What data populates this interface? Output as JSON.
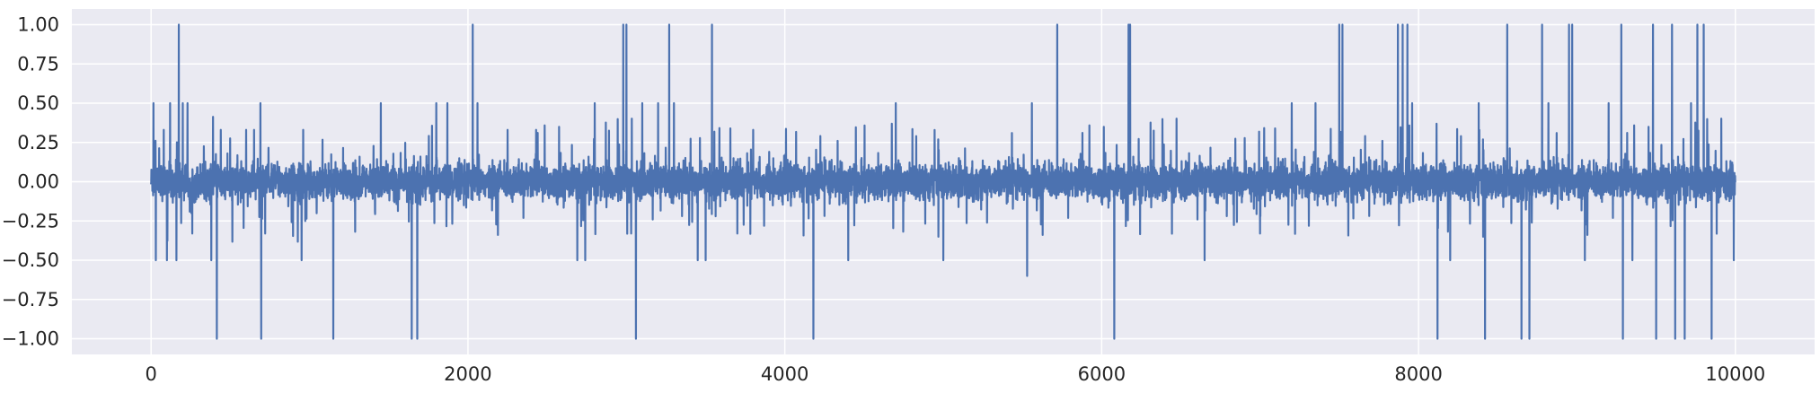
{
  "chart_data": {
    "type": "line",
    "title": "",
    "xlabel": "",
    "ylabel": "",
    "xlim": [
      -500,
      10500
    ],
    "ylim": [
      -1.1,
      1.1
    ],
    "x_ticks": [
      0,
      2000,
      4000,
      6000,
      8000,
      10000
    ],
    "x_tick_labels": [
      "0",
      "2000",
      "4000",
      "6000",
      "8000",
      "10000"
    ],
    "y_ticks": [
      1.0,
      0.75,
      0.5,
      0.25,
      0.0,
      -0.25,
      -0.5,
      -0.75,
      -1.0
    ],
    "y_tick_labels": [
      "1.00",
      "0.75",
      "0.50",
      "0.25",
      "0.00",
      "−0.25",
      "−0.50",
      "−0.75",
      "−1.00"
    ],
    "grid": true,
    "legend": "none",
    "series": [
      {
        "color": "#4C72B0",
        "x_range": [
          0,
          10000
        ],
        "n_points": 10000,
        "typical_amplitude": 0.1,
        "spikes": [
          {
            "x": 15,
            "y": 0.5
          },
          {
            "x": 30,
            "y": -0.5
          },
          {
            "x": 80,
            "y": 0.33
          },
          {
            "x": 100,
            "y": -0.5
          },
          {
            "x": 120,
            "y": 0.5
          },
          {
            "x": 160,
            "y": -0.5
          },
          {
            "x": 175,
            "y": 1.0
          },
          {
            "x": 200,
            "y": 0.5
          },
          {
            "x": 230,
            "y": 0.5
          },
          {
            "x": 260,
            "y": -0.33
          },
          {
            "x": 380,
            "y": -0.5
          },
          {
            "x": 415,
            "y": -1.0
          },
          {
            "x": 440,
            "y": 0.33
          },
          {
            "x": 600,
            "y": 0.33
          },
          {
            "x": 650,
            "y": 0.33
          },
          {
            "x": 690,
            "y": 0.5
          },
          {
            "x": 695,
            "y": -1.0
          },
          {
            "x": 720,
            "y": -0.33
          },
          {
            "x": 950,
            "y": -0.5
          },
          {
            "x": 960,
            "y": 0.33
          },
          {
            "x": 1150,
            "y": -1.0
          },
          {
            "x": 1450,
            "y": 0.5
          },
          {
            "x": 1645,
            "y": -1.0
          },
          {
            "x": 1680,
            "y": -1.0
          },
          {
            "x": 1800,
            "y": 0.5
          },
          {
            "x": 1870,
            "y": 0.5
          },
          {
            "x": 2030,
            "y": 1.0
          },
          {
            "x": 2060,
            "y": 0.5
          },
          {
            "x": 2250,
            "y": 0.33
          },
          {
            "x": 2430,
            "y": 0.33
          },
          {
            "x": 2690,
            "y": -0.5
          },
          {
            "x": 2740,
            "y": -0.5
          },
          {
            "x": 2800,
            "y": 0.5
          },
          {
            "x": 2980,
            "y": 1.0
          },
          {
            "x": 3000,
            "y": 1.0
          },
          {
            "x": 3030,
            "y": -0.33
          },
          {
            "x": 3060,
            "y": -1.0
          },
          {
            "x": 3100,
            "y": 0.5
          },
          {
            "x": 3200,
            "y": 0.5
          },
          {
            "x": 3270,
            "y": 1.0
          },
          {
            "x": 3300,
            "y": 0.5
          },
          {
            "x": 3450,
            "y": -0.5
          },
          {
            "x": 3500,
            "y": -0.5
          },
          {
            "x": 3540,
            "y": 1.0
          },
          {
            "x": 3700,
            "y": -0.33
          },
          {
            "x": 3800,
            "y": 0.33
          },
          {
            "x": 4180,
            "y": -1.0
          },
          {
            "x": 4400,
            "y": -0.5
          },
          {
            "x": 4700,
            "y": 0.5
          },
          {
            "x": 5000,
            "y": -0.5
          },
          {
            "x": 5530,
            "y": -0.6
          },
          {
            "x": 5560,
            "y": 0.5
          },
          {
            "x": 5720,
            "y": 1.0
          },
          {
            "x": 6080,
            "y": -1.0
          },
          {
            "x": 6170,
            "y": 1.0
          },
          {
            "x": 6180,
            "y": 1.0
          },
          {
            "x": 6650,
            "y": -0.5
          },
          {
            "x": 7000,
            "y": -0.33
          },
          {
            "x": 7200,
            "y": 0.5
          },
          {
            "x": 7350,
            "y": 0.5
          },
          {
            "x": 7500,
            "y": 1.0
          },
          {
            "x": 7520,
            "y": 1.0
          },
          {
            "x": 7870,
            "y": 1.0
          },
          {
            "x": 7900,
            "y": 1.0
          },
          {
            "x": 7930,
            "y": 1.0
          },
          {
            "x": 7960,
            "y": 0.5
          },
          {
            "x": 8120,
            "y": -1.0
          },
          {
            "x": 8200,
            "y": -0.5
          },
          {
            "x": 8380,
            "y": 0.5
          },
          {
            "x": 8420,
            "y": -1.0
          },
          {
            "x": 8560,
            "y": 1.0
          },
          {
            "x": 8650,
            "y": -1.0
          },
          {
            "x": 8700,
            "y": -1.0
          },
          {
            "x": 8780,
            "y": 1.0
          },
          {
            "x": 8820,
            "y": 0.5
          },
          {
            "x": 8950,
            "y": 1.0
          },
          {
            "x": 8970,
            "y": 1.0
          },
          {
            "x": 9050,
            "y": -0.5
          },
          {
            "x": 9200,
            "y": 0.5
          },
          {
            "x": 9280,
            "y": 1.0
          },
          {
            "x": 9290,
            "y": -1.0
          },
          {
            "x": 9350,
            "y": -0.5
          },
          {
            "x": 9480,
            "y": 1.0
          },
          {
            "x": 9500,
            "y": -1.0
          },
          {
            "x": 9600,
            "y": 1.0
          },
          {
            "x": 9620,
            "y": -1.0
          },
          {
            "x": 9680,
            "y": -1.0
          },
          {
            "x": 9720,
            "y": 0.5
          },
          {
            "x": 9760,
            "y": 1.0
          },
          {
            "x": 9800,
            "y": 1.0
          },
          {
            "x": 9850,
            "y": -1.0
          },
          {
            "x": 9990,
            "y": -0.5
          }
        ]
      }
    ]
  }
}
